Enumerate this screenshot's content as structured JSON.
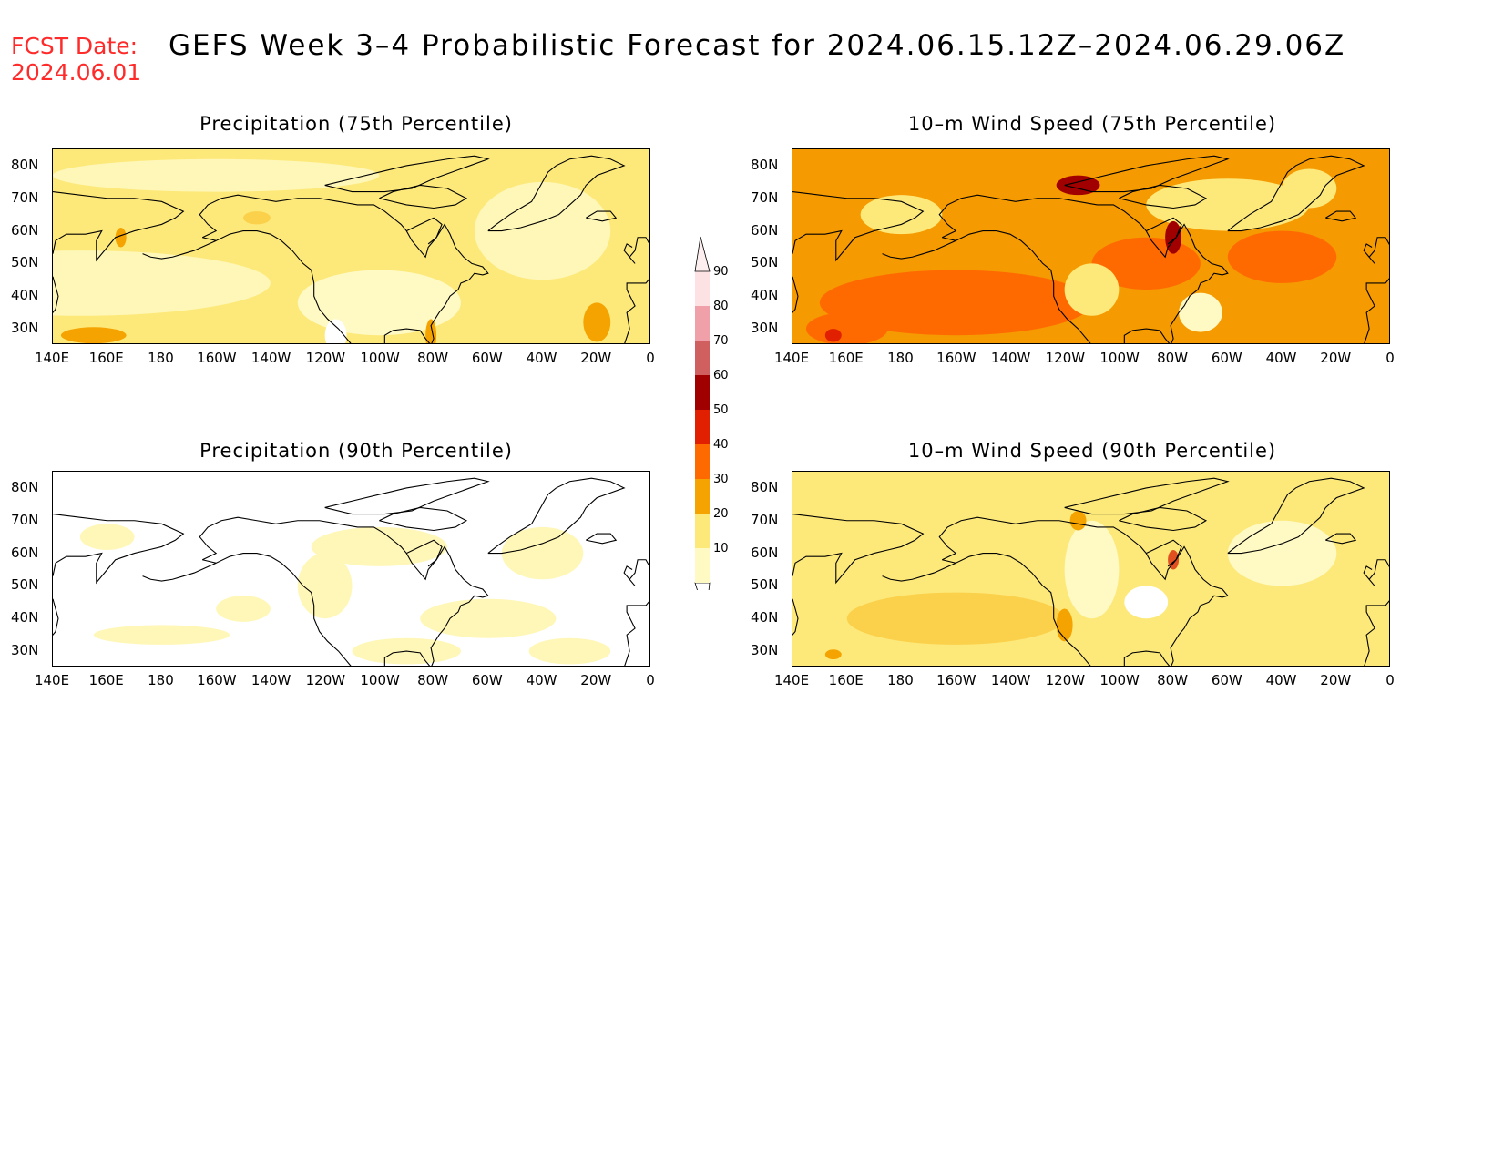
{
  "header": {
    "fcst_label": "FCST Date:",
    "fcst_date": "2024.06.01",
    "title": "GEFS Week 3–4 Probabilistic Forecast for 2024.06.15.12Z–2024.06.29.06Z"
  },
  "panels": [
    {
      "id": "precip75",
      "title": "Precipitation (75th Percentile)",
      "dominant_level": "10-20"
    },
    {
      "id": "wind75",
      "title": "10–m Wind Speed (75th Percentile)",
      "dominant_level": "30-40"
    },
    {
      "id": "precip90",
      "title": "Precipitation (90th Percentile)",
      "dominant_level": "0-10"
    },
    {
      "id": "wind90",
      "title": "10–m Wind Speed (90th Percentile)",
      "dominant_level": "10-20"
    }
  ],
  "axes": {
    "lon_labels": [
      "140E",
      "160E",
      "180",
      "160W",
      "140W",
      "120W",
      "100W",
      "80W",
      "60W",
      "40W",
      "20W",
      "0"
    ],
    "lat_labels": [
      "80N",
      "70N",
      "60N",
      "50N",
      "40N",
      "30N"
    ],
    "lon_range": [
      140,
      360
    ],
    "lat_range": [
      25,
      85
    ]
  },
  "colorbar": {
    "levels": [
      "10",
      "20",
      "30",
      "40",
      "50",
      "60",
      "70",
      "80",
      "90"
    ],
    "colors": [
      "#fff9c4",
      "#fde97a",
      "#f5a300",
      "#ff6a00",
      "#e02000",
      "#a00000",
      "#d06060",
      "#f0a0a8",
      "#fde2e4"
    ]
  }
}
